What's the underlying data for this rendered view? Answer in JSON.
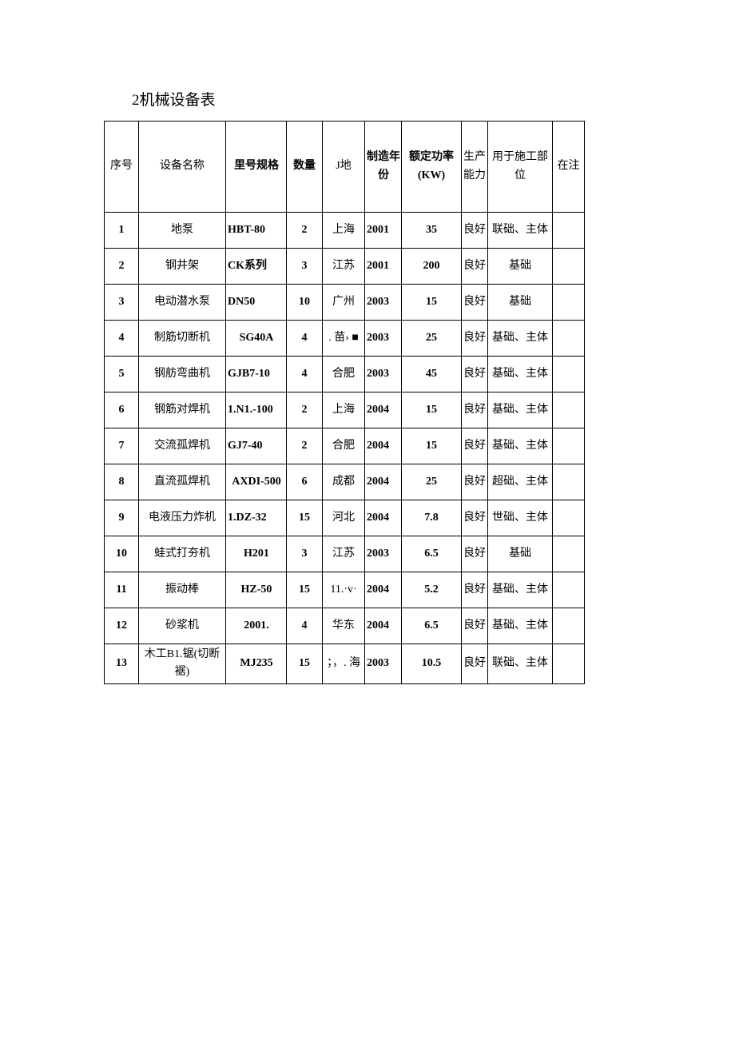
{
  "title": "2机械设备表",
  "columns": {
    "seq": "序号",
    "name": "设备名称",
    "spec": "里号规格",
    "qty": "数量",
    "place": "J地",
    "year": "制造年份",
    "power": "额定功率\n(KW)",
    "capacity": "生产能力",
    "use": "用于施工部位",
    "note": "在注"
  },
  "rows": [
    {
      "seq": "1",
      "name": "地泵",
      "spec": "HBT-80",
      "qty": "2",
      "place": "上海",
      "year": "2001",
      "power": "35",
      "capacity": "良好",
      "use": "联础、主体",
      "note": ""
    },
    {
      "seq": "2",
      "name": "钢井架",
      "spec": "CK系列",
      "qty": "3",
      "place": "江苏",
      "year": "2001",
      "power": "200",
      "capacity": "良好",
      "use": "基础",
      "note": ""
    },
    {
      "seq": "3",
      "name": "电动潜水泵",
      "spec": "DN50",
      "qty": "10",
      "place": "广州",
      "year": "2003",
      "power": "15",
      "capacity": "良好",
      "use": "基础",
      "note": ""
    },
    {
      "seq": "4",
      "name": "制筋切断机",
      "spec": "SG40A",
      "qty": "4",
      "place": ". 苗› ■",
      "year": "2003",
      "power": "25",
      "capacity": "良好",
      "use": "基础、主体",
      "note": ""
    },
    {
      "seq": "5",
      "name": "钢舫弯曲机",
      "spec": "GJB7-10",
      "qty": "4",
      "place": "合肥",
      "year": "2003",
      "power": "45",
      "capacity": "良好",
      "use": "基础、主体",
      "note": ""
    },
    {
      "seq": "6",
      "name": "钢筋对焊机",
      "spec": "1.N1.-100",
      "qty": "2",
      "place": "上海",
      "year": "2004",
      "power": "15",
      "capacity": "良好",
      "use": "基础、主体",
      "note": ""
    },
    {
      "seq": "7",
      "name": "交流孤焊机",
      "spec": "GJ7-40",
      "qty": "2",
      "place": "合肥",
      "year": "2004",
      "power": "15",
      "capacity": "良好",
      "use": "基础、主体",
      "note": ""
    },
    {
      "seq": "8",
      "name": "直流孤焊机",
      "spec": "AXDI-500",
      "qty": "6",
      "place": "成都",
      "year": "2004",
      "power": "25",
      "capacity": "良好",
      "use": "超础、主体",
      "note": ""
    },
    {
      "seq": "9",
      "name": "电液压力炸机",
      "spec": "1.DZ-32",
      "qty": "15",
      "place": "河北",
      "year": "2004",
      "power": "7.8",
      "capacity": "良好",
      "use": "世础、主体",
      "note": ""
    },
    {
      "seq": "10",
      "name": "蛙式打夯机",
      "spec": "H201",
      "qty": "3",
      "place": "江苏",
      "year": "2003",
      "power": "6.5",
      "capacity": "良好",
      "use": "基础",
      "note": ""
    },
    {
      "seq": "11",
      "name": "振动棒",
      "spec": "HZ-50",
      "qty": "15",
      "place": "11.·v·",
      "year": "2004",
      "power": "5.2",
      "capacity": "良好",
      "use": "基础、主体",
      "note": ""
    },
    {
      "seq": "12",
      "name": "砂浆机",
      "spec": "2001.",
      "qty": "4",
      "place": "华东",
      "year": "2004",
      "power": "6.5",
      "capacity": "良好",
      "use": "基础、主体",
      "note": ""
    },
    {
      "seq": "13",
      "name": "木工B1.锯(切断裾)",
      "spec": "MJ235",
      "qty": "15",
      "place": "；，. 海",
      "year": "2003",
      "power": "10.5",
      "capacity": "良好",
      "use": "联础、主体",
      "note": ""
    }
  ],
  "styleHints": {
    "specCenterRows": [
      "AXDI-500",
      "H201",
      "HZ-50",
      "2001.",
      "MJ235",
      "SG40A"
    ]
  }
}
